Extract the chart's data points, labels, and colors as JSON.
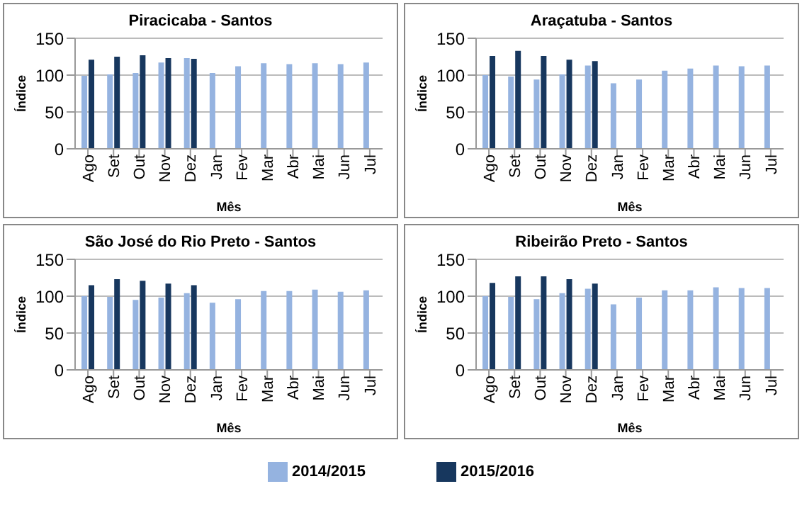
{
  "chart_data": [
    {
      "type": "bar",
      "title": "Piracicaba - Santos",
      "xlabel": "Mês",
      "ylabel": "Índice",
      "categories": [
        "Ago",
        "Set",
        "Out",
        "Nov",
        "Dez",
        "Jan",
        "Fev",
        "Mar",
        "Abr",
        "Mai",
        "Jun",
        "Jul"
      ],
      "ylim": [
        0,
        150
      ],
      "yticks": [
        0,
        50,
        100,
        150
      ],
      "grid": "y",
      "legend": "bottom",
      "series": [
        {
          "name": "2014/2015",
          "color": "#95b3e0",
          "values": [
            99,
            101,
            103,
            117,
            123,
            103,
            112,
            116,
            115,
            116,
            115,
            117
          ]
        },
        {
          "name": "2015/2016",
          "color": "#17375e",
          "values": [
            121,
            125,
            127,
            123,
            122,
            null,
            null,
            null,
            null,
            null,
            null,
            null
          ]
        }
      ]
    },
    {
      "type": "bar",
      "title": "Araçatuba - Santos",
      "xlabel": "Mês",
      "ylabel": "Índice",
      "categories": [
        "Ago",
        "Set",
        "Out",
        "Nov",
        "Dez",
        "Jan",
        "Fev",
        "Mar",
        "Abr",
        "Mai",
        "Jun",
        "Jul"
      ],
      "ylim": [
        0,
        150
      ],
      "yticks": [
        0,
        50,
        100,
        150
      ],
      "grid": "y",
      "series": [
        {
          "name": "2014/2015",
          "color": "#95b3e0",
          "values": [
            100,
            98,
            94,
            101,
            113,
            89,
            94,
            106,
            109,
            113,
            112,
            113
          ]
        },
        {
          "name": "2015/2016",
          "color": "#17375e",
          "values": [
            126,
            133,
            126,
            121,
            119,
            null,
            null,
            null,
            null,
            null,
            null,
            null
          ]
        }
      ]
    },
    {
      "type": "bar",
      "title": "São José do Rio Preto - Santos",
      "xlabel": "Mês",
      "ylabel": "Índice",
      "categories": [
        "Ago",
        "Set",
        "Out",
        "Nov",
        "Dez",
        "Jan",
        "Fev",
        "Mar",
        "Abr",
        "Mai",
        "Jun",
        "Jul"
      ],
      "ylim": [
        0,
        150
      ],
      "yticks": [
        0,
        50,
        100,
        150
      ],
      "grid": "y",
      "series": [
        {
          "name": "2014/2015",
          "color": "#95b3e0",
          "values": [
            100,
            99,
            95,
            98,
            104,
            91,
            96,
            107,
            107,
            109,
            106,
            108
          ]
        },
        {
          "name": "2015/2016",
          "color": "#17375e",
          "values": [
            115,
            123,
            121,
            117,
            115,
            null,
            null,
            null,
            null,
            null,
            null,
            null
          ]
        }
      ]
    },
    {
      "type": "bar",
      "title": "Ribeirão Preto - Santos",
      "xlabel": "Mês",
      "ylabel": "Índice",
      "categories": [
        "Ago",
        "Set",
        "Out",
        "Nov",
        "Dez",
        "Jan",
        "Fev",
        "Mar",
        "Abr",
        "Mai",
        "Jun",
        "Jul"
      ],
      "ylim": [
        0,
        150
      ],
      "yticks": [
        0,
        50,
        100,
        150
      ],
      "grid": "y",
      "series": [
        {
          "name": "2014/2015",
          "color": "#95b3e0",
          "values": [
            100,
            99,
            96,
            104,
            110,
            89,
            98,
            108,
            108,
            112,
            111,
            111
          ]
        },
        {
          "name": "2015/2016",
          "color": "#17375e",
          "values": [
            118,
            127,
            127,
            123,
            117,
            null,
            null,
            null,
            null,
            null,
            null,
            null
          ]
        }
      ]
    }
  ]
}
